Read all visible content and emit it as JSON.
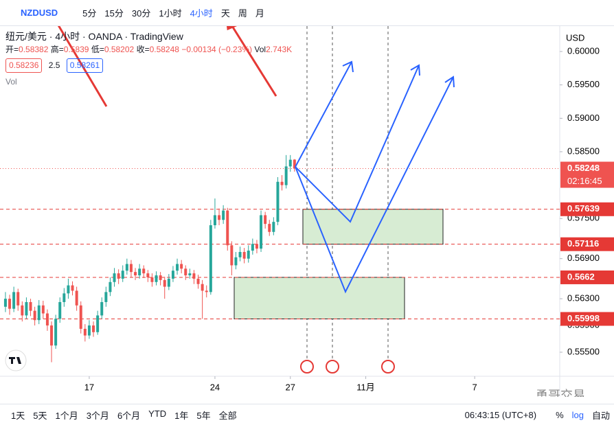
{
  "toolbar": {
    "symbol": "NZDUSD",
    "intervals": [
      "5分",
      "15分",
      "30分",
      "1小时",
      "4小时",
      "天",
      "周",
      "月"
    ]
  },
  "legend": {
    "title": "纽元/美元 · 4小时 · OANDA · TradingView",
    "open_label": "开=",
    "high_label": "高=",
    "low_label": "低=",
    "close_label": "收=",
    "change": "−0.00134 (−0.23%)",
    "volume_label": "Vol",
    "volume": "2.743K",
    "bid": "0.58236",
    "spread": "2.5",
    "ask": "0.58261",
    "vol_toggle": "Vol"
  },
  "chart_data": {
    "type": "candlestick",
    "currency": "USD",
    "countdown": "02:16:45",
    "grid": false,
    "up_color": "#26a69a",
    "down_color": "#ef5350",
    "level_color": "#e53935",
    "xlim": [
      -1.3,
      132.3
    ],
    "xticks": [
      {
        "value": 20,
        "label": "17"
      },
      {
        "value": 50,
        "label": "24"
      },
      {
        "value": 68,
        "label": "27"
      },
      {
        "value": 86,
        "label": "11月"
      },
      {
        "value": 112,
        "label": "7"
      }
    ],
    "ylim": [
      0.5514,
      0.6038
    ],
    "yticks": [
      {
        "value": 0.6,
        "label": "0.60000"
      },
      {
        "value": 0.595,
        "label": "0.59500"
      },
      {
        "value": 0.59,
        "label": "0.59000"
      },
      {
        "value": 0.585,
        "label": "0.58500"
      },
      {
        "value": 0.575,
        "label": "0.57500"
      },
      {
        "value": 0.569,
        "label": "0.56900"
      },
      {
        "value": 0.563,
        "label": "0.56300"
      },
      {
        "value": 0.559,
        "label": "0.55900"
      },
      {
        "value": 0.555,
        "label": "0.55500"
      }
    ],
    "levels": [
      0.57639,
      0.57116,
      0.5662,
      0.55998
    ],
    "candles": {
      "open": [
        0.5618,
        0.563,
        0.5615,
        0.564,
        0.562,
        0.5605,
        0.5625,
        0.5612,
        0.5598,
        0.562,
        0.5608,
        0.559,
        0.556,
        0.56,
        0.5625,
        0.5638,
        0.565,
        0.5642,
        0.562,
        0.5585,
        0.5575,
        0.559,
        0.558,
        0.5605,
        0.5625,
        0.564,
        0.5655,
        0.5668,
        0.566,
        0.5672,
        0.5682,
        0.567,
        0.5665,
        0.5675,
        0.5668,
        0.5662,
        0.5655,
        0.5665,
        0.5658,
        0.5648,
        0.566,
        0.5672,
        0.5682,
        0.5675,
        0.5665,
        0.5668,
        0.566,
        0.5652,
        0.5642,
        0.564,
        0.574,
        0.5755,
        0.5748,
        0.5762,
        0.571,
        0.568,
        0.5692,
        0.57,
        0.569,
        0.5702,
        0.5712,
        0.5705,
        0.5755,
        0.5742,
        0.573,
        0.5745,
        0.5805,
        0.58,
        0.5828,
        0.58382
      ],
      "high": [
        0.564,
        0.5636,
        0.5648,
        0.5645,
        0.5626,
        0.5632,
        0.563,
        0.5618,
        0.5628,
        0.5627,
        0.5614,
        0.5596,
        0.5606,
        0.5632,
        0.5646,
        0.566,
        0.5656,
        0.5648,
        0.5626,
        0.5592,
        0.5598,
        0.5596,
        0.5612,
        0.5632,
        0.5648,
        0.5662,
        0.5676,
        0.5674,
        0.568,
        0.569,
        0.5688,
        0.5676,
        0.5682,
        0.568,
        0.5673,
        0.5668,
        0.5671,
        0.567,
        0.5663,
        0.5667,
        0.5679,
        0.569,
        0.5688,
        0.568,
        0.5675,
        0.5673,
        0.5666,
        0.5658,
        0.565,
        0.5748,
        0.578,
        0.5765,
        0.577,
        0.5766,
        0.5716,
        0.57,
        0.5708,
        0.5706,
        0.571,
        0.572,
        0.5718,
        0.5762,
        0.576,
        0.5748,
        0.5752,
        0.5812,
        0.5815,
        0.5845,
        0.5845,
        0.5839
      ],
      "low": [
        0.561,
        0.5606,
        0.561,
        0.5612,
        0.5596,
        0.56,
        0.5604,
        0.559,
        0.5592,
        0.56,
        0.5582,
        0.5535,
        0.5555,
        0.5594,
        0.5618,
        0.563,
        0.5635,
        0.5612,
        0.5578,
        0.5566,
        0.557,
        0.5573,
        0.5576,
        0.56,
        0.5618,
        0.5634,
        0.5648,
        0.5652,
        0.5655,
        0.5666,
        0.5662,
        0.5658,
        0.566,
        0.5661,
        0.5655,
        0.5648,
        0.565,
        0.565,
        0.563,
        0.5643,
        0.5655,
        0.5666,
        0.5668,
        0.5658,
        0.566,
        0.5652,
        0.5645,
        0.56,
        0.5632,
        0.5636,
        0.5735,
        0.574,
        0.5742,
        0.5702,
        0.5665,
        0.5674,
        0.5686,
        0.5683,
        0.5684,
        0.5696,
        0.5698,
        0.57,
        0.5735,
        0.5724,
        0.5725,
        0.574,
        0.5792,
        0.5795,
        0.582,
        0.58202
      ],
      "close": [
        0.563,
        0.5615,
        0.564,
        0.562,
        0.5605,
        0.5625,
        0.5612,
        0.5598,
        0.562,
        0.5608,
        0.559,
        0.556,
        0.56,
        0.5625,
        0.5638,
        0.565,
        0.5642,
        0.562,
        0.5585,
        0.5575,
        0.559,
        0.558,
        0.5605,
        0.5625,
        0.564,
        0.5655,
        0.5668,
        0.566,
        0.5672,
        0.5682,
        0.567,
        0.5665,
        0.5675,
        0.5668,
        0.5662,
        0.5655,
        0.5665,
        0.5658,
        0.5648,
        0.566,
        0.5672,
        0.5682,
        0.5675,
        0.5665,
        0.5668,
        0.566,
        0.5652,
        0.5642,
        0.564,
        0.574,
        0.5755,
        0.5748,
        0.5762,
        0.571,
        0.568,
        0.5692,
        0.57,
        0.569,
        0.5702,
        0.5712,
        0.5705,
        0.5755,
        0.5742,
        0.573,
        0.5745,
        0.5805,
        0.58,
        0.5828,
        0.5838,
        0.58248
      ]
    }
  },
  "bottom_bar": {
    "ranges": [
      "1天",
      "5天",
      "1个月",
      "3个月",
      "6个月",
      "YTD",
      "1年",
      "5年",
      "全部"
    ],
    "clock": "06:43:15 (UTC+8)",
    "percent": "%",
    "log": "log",
    "auto": "自动"
  },
  "watermark": "勇哥交易"
}
